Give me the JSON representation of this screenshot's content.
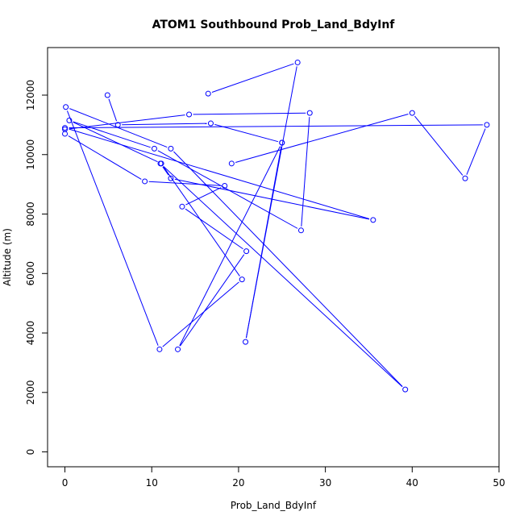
{
  "chart_data": {
    "type": "line",
    "title": "ATOM1 Southbound Prob_Land_BdyInf",
    "xlabel": "Prob_Land_BdyInf",
    "ylabel": "Altitude (m)",
    "xlim": [
      -2.0,
      50.0
    ],
    "ylim": [
      -500,
      13600
    ],
    "xticks": [
      0,
      10,
      20,
      30,
      40,
      50
    ],
    "yticks": [
      0,
      2000,
      4000,
      6000,
      8000,
      10000,
      12000
    ],
    "grid": false,
    "legend": "none",
    "line_color": "#0000ff",
    "marker": "open-circle",
    "series": [
      {
        "x": [
          16.5,
          26.8,
          20.8,
          25.0,
          13.0,
          20.9,
          13.5,
          18.4,
          9.2,
          0.0,
          0.0,
          14.3,
          28.2,
          27.2,
          10.3,
          0.5,
          11.1,
          20.4,
          10.9,
          0.1,
          12.2,
          39.2,
          11.0,
          12.2,
          35.5,
          0.0,
          48.6,
          46.1,
          40.0,
          19.2
        ],
        "y": [
          12050,
          13100,
          3700,
          10400,
          3450,
          6750,
          8250,
          8950,
          9100,
          10700,
          10850,
          11350,
          11400,
          7450,
          10200,
          11150,
          9700,
          5800,
          3450,
          11600,
          10200,
          2100,
          9700,
          9200,
          7800,
          10900,
          11000,
          9200,
          11400,
          9700
        ]
      },
      {
        "x": [
          4.9,
          6.1,
          16.8,
          25.0
        ],
        "y": [
          12000,
          11000,
          11050,
          10400
        ]
      }
    ]
  }
}
